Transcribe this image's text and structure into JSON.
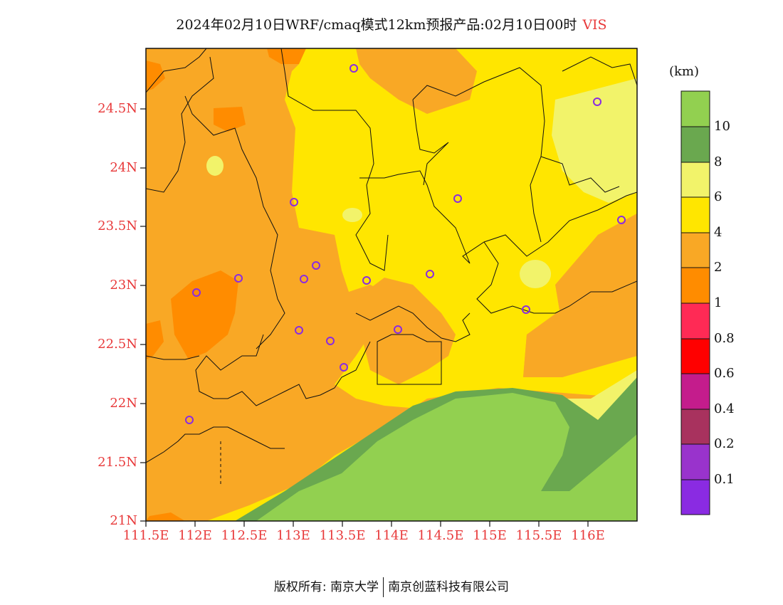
{
  "header": {
    "title": "2024年02月10日WRF/cmaq模式12km预报产品:02月10日00时",
    "variable": "VIS"
  },
  "map": {
    "lat_labels": [
      "24.5N",
      "24N",
      "23.5N",
      "23N",
      "22.5N",
      "22N",
      "21.5N",
      "21N"
    ],
    "lon_labels": [
      "111.5E",
      "112E",
      "112.5E",
      "113E",
      "113.5E",
      "114E",
      "114.5E",
      "115E",
      "115.5E",
      "116E"
    ],
    "station_count": 17
  },
  "colorbar": {
    "unit": "(km)",
    "levels": [
      "10",
      "8",
      "6",
      "4",
      "2",
      "1",
      "0.8",
      "0.6",
      "0.4",
      "0.2",
      "0.1"
    ],
    "colors": [
      "#92d050",
      "#6aa84f",
      "#f2f36a",
      "#ffe600",
      "#f9a825",
      "#ff8c00",
      "#ff2a55",
      "#ff0000",
      "#c41c8c",
      "#a8325e",
      "#9933cc",
      "#8a2be2"
    ]
  },
  "footer": {
    "left": "版权所有: 南京大学",
    "right": "南京创蓝科技有限公司"
  }
}
